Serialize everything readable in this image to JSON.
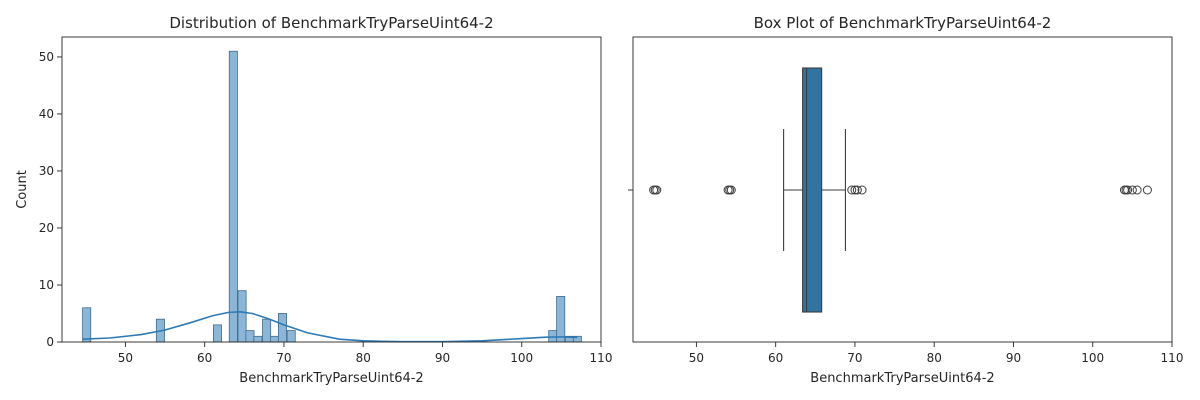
{
  "chart_data": [
    {
      "type": "bar",
      "subtype": "histogram_with_kde",
      "title": "Distribution of BenchmarkTryParseUint64-2",
      "xlabel": "BenchmarkTryParseUint64-2",
      "ylabel": "Count",
      "xlim": [
        42,
        110
      ],
      "ylim": [
        0,
        53.5
      ],
      "xticks": [
        50,
        60,
        70,
        80,
        90,
        100,
        110
      ],
      "yticks": [
        0,
        10,
        20,
        30,
        40,
        50
      ],
      "bin_width": 1.03,
      "bins": [
        {
          "x0": 44.6,
          "count": 6
        },
        {
          "x0": 53.9,
          "count": 4
        },
        {
          "x0": 61.1,
          "count": 3
        },
        {
          "x0": 63.1,
          "count": 51
        },
        {
          "x0": 64.2,
          "count": 9
        },
        {
          "x0": 65.2,
          "count": 2
        },
        {
          "x0": 66.2,
          "count": 1
        },
        {
          "x0": 67.3,
          "count": 4
        },
        {
          "x0": 68.3,
          "count": 1
        },
        {
          "x0": 69.3,
          "count": 5
        },
        {
          "x0": 70.4,
          "count": 2
        },
        {
          "x0": 103.4,
          "count": 2
        },
        {
          "x0": 104.4,
          "count": 8
        },
        {
          "x0": 105.5,
          "count": 1
        },
        {
          "x0": 106.5,
          "count": 1
        }
      ],
      "kde": {
        "x": [
          44.6,
          48,
          52,
          55,
          58,
          61,
          63,
          64.5,
          66,
          68,
          70,
          73,
          77,
          80,
          85,
          90,
          95,
          100,
          103,
          105,
          107
        ],
        "y": [
          0.5,
          0.7,
          1.3,
          2.1,
          3.3,
          4.6,
          5.2,
          5.3,
          5.0,
          4.1,
          3.0,
          1.6,
          0.5,
          0.2,
          0.05,
          0.05,
          0.2,
          0.6,
          0.85,
          0.9,
          0.8
        ]
      },
      "grid": false,
      "colors": {
        "bar_fill": "#8bb6d7",
        "bar_edge": "#3f6b8c",
        "kde_line": "#2e7ab6"
      }
    },
    {
      "type": "box",
      "title": "Box Plot of BenchmarkTryParseUint64-2",
      "xlabel": "BenchmarkTryParseUint64-2",
      "xlim": [
        42,
        110
      ],
      "xticks": [
        50,
        60,
        70,
        80,
        90,
        100,
        110
      ],
      "box": {
        "whisker_low": 61.0,
        "q1": 63.4,
        "median": 63.9,
        "q3": 65.8,
        "whisker_high": 68.8
      },
      "outliers": [
        44.6,
        44.8,
        45.0,
        54.0,
        54.2,
        54.4,
        69.6,
        70.0,
        70.3,
        70.9,
        104.0,
        104.2,
        104.4,
        105.0,
        105.6,
        106.9
      ],
      "grid": false,
      "colors": {
        "box_fill": "#3274a1",
        "line": "#3d3d3d"
      }
    }
  ]
}
